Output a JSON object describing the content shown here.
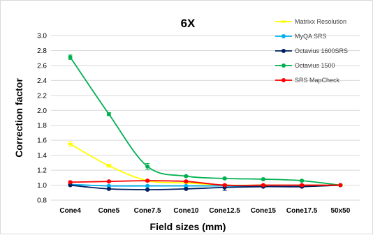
{
  "chart_data": {
    "type": "line",
    "title": "6X",
    "xlabel": "Field sizes (mm)",
    "ylabel": "Correction factor",
    "categories": [
      "Cone4",
      "Cone5",
      "Cone7.5",
      "Cone10",
      "Cone12.5",
      "Cone15",
      "Cone17.5",
      "50x50"
    ],
    "ylim": [
      0.8,
      3.0
    ],
    "yticks": [
      "0.8",
      "1.0",
      "1.2",
      "1.4",
      "1.6",
      "1.8",
      "2.0",
      "2.2",
      "2.4",
      "2.6",
      "2.8",
      "3.0"
    ],
    "grid": true,
    "legend_position": "top-right",
    "series": [
      {
        "name": "Matrixx Resolution",
        "color": "#ffff00",
        "marker": "dash",
        "values": [
          1.55,
          1.26,
          1.06,
          1.03,
          1.0,
          1.0,
          1.0,
          1.0
        ],
        "errors": [
          0.03,
          0.02,
          0.01,
          0.01,
          0.01,
          0.01,
          0.01,
          0.0
        ]
      },
      {
        "name": "MyQA SRS",
        "color": "#00b0f0",
        "marker": "circle",
        "values": [
          1.01,
          0.99,
          0.99,
          0.99,
          0.99,
          0.99,
          0.99,
          1.0
        ],
        "errors": [
          0.01,
          0.01,
          0.01,
          0.01,
          0.01,
          0.01,
          0.01,
          0.0
        ]
      },
      {
        "name": "Octavius 1600SRS",
        "color": "#002060",
        "marker": "circle",
        "values": [
          1.0,
          0.95,
          0.94,
          0.95,
          0.97,
          0.98,
          0.98,
          1.0
        ],
        "errors": [
          0.01,
          0.01,
          0.01,
          0.01,
          0.04,
          0.01,
          0.01,
          0.0
        ]
      },
      {
        "name": "Octavius 1500",
        "color": "#00b050",
        "marker": "circle",
        "values": [
          2.71,
          1.95,
          1.25,
          1.12,
          1.09,
          1.08,
          1.06,
          1.0
        ],
        "errors": [
          0.03,
          0.02,
          0.04,
          0.01,
          0.01,
          0.01,
          0.01,
          0.0
        ]
      },
      {
        "name": "SRS MapCheck",
        "color": "#ff0000",
        "marker": "circle",
        "values": [
          1.04,
          1.05,
          1.06,
          1.05,
          1.0,
          1.0,
          1.0,
          1.0
        ],
        "errors": [
          0.01,
          0.01,
          0.01,
          0.01,
          0.01,
          0.01,
          0.01,
          0.0
        ]
      }
    ]
  }
}
